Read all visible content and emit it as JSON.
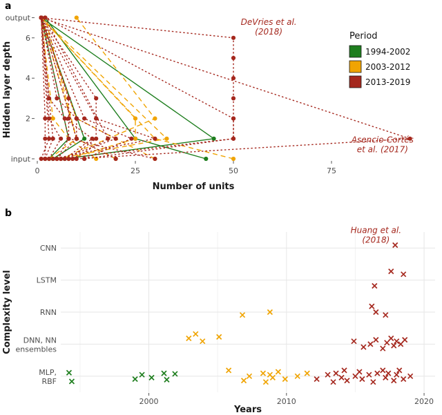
{
  "figure": {
    "panel_a_label": "a",
    "panel_b_label": "b"
  },
  "colors": {
    "1994-2002": "#1e7e1e",
    "2003-2012": "#f0a402",
    "2013-2019": "#a5281e",
    "annotation": "#a5281e",
    "tick_text": "#4d4d4d",
    "axis_title": "#1a1a1a",
    "grid_major": "#e6e6e6",
    "grid_minor": "#f2f2f2"
  },
  "legend": {
    "title": "Period",
    "entries": [
      {
        "label": "1994-2002",
        "period": "1994-2002"
      },
      {
        "label": "2003-2012",
        "period": "2003-2012"
      },
      {
        "label": "2013-2019",
        "period": "2013-2019"
      }
    ]
  },
  "line_styles": {
    "1994-2002": "solid",
    "2003-2012": "dashed",
    "2013-2019": "dotted"
  },
  "chart_data": [
    {
      "type": "line",
      "panel": "a",
      "title": "",
      "xlabel": "Number of units",
      "ylabel": "Hidden layer depth",
      "xlim": [
        0,
        97
      ],
      "xticks": [
        0,
        25,
        50,
        75
      ],
      "yticks": [
        {
          "value": 0,
          "label": "input"
        },
        {
          "value": 2,
          "label": "2"
        },
        {
          "value": 4,
          "label": "4"
        },
        {
          "value": 6,
          "label": "6"
        },
        {
          "value": 7,
          "label": "output"
        }
      ],
      "annotations": [
        {
          "x": 59,
          "y": 6.65,
          "lines": [
            "DeVries et al.",
            "(2018)"
          ]
        },
        {
          "x": 88,
          "y": 0.8,
          "lines": [
            "Asencio-Cortés",
            "et al. (2017)"
          ]
        }
      ],
      "networks": [
        {
          "period": "1994-2002",
          "layers": [
            [
              7,
              0
            ],
            [
              45,
              1
            ],
            [
              1,
              7
            ]
          ]
        },
        {
          "period": "1994-2002",
          "layers": [
            [
              4,
              0
            ],
            [
              12,
              1
            ],
            [
              1,
              7
            ]
          ]
        },
        {
          "period": "1994-2002",
          "layers": [
            [
              3,
              0
            ],
            [
              8,
              1
            ],
            [
              1,
              7
            ]
          ]
        },
        {
          "period": "1994-2002",
          "layers": [
            [
              43,
              0
            ],
            [
              25,
              1
            ],
            [
              2,
              7
            ]
          ]
        },
        {
          "period": "2003-2012",
          "layers": [
            [
              20,
              0
            ],
            [
              10,
              1
            ],
            [
              1,
              7
            ]
          ]
        },
        {
          "period": "2003-2012",
          "layers": [
            [
              30,
              0
            ],
            [
              20,
              1
            ],
            [
              10,
              2
            ],
            [
              1,
              7
            ]
          ]
        },
        {
          "period": "2003-2012",
          "layers": [
            [
              5,
              0
            ],
            [
              33,
              1
            ],
            [
              1,
              7
            ]
          ]
        },
        {
          "period": "2003-2012",
          "layers": [
            [
              8,
              0
            ],
            [
              25,
              1
            ],
            [
              25,
              2
            ],
            [
              1,
              7
            ]
          ]
        },
        {
          "period": "2003-2012",
          "layers": [
            [
              50,
              0
            ],
            [
              30,
              1
            ],
            [
              1,
              7
            ]
          ]
        },
        {
          "period": "2003-2012",
          "layers": [
            [
              6,
              0
            ],
            [
              18,
              1
            ],
            [
              30,
              2
            ],
            [
              10,
              7
            ]
          ]
        },
        {
          "period": "2003-2012",
          "layers": [
            [
              3,
              0
            ],
            [
              10,
              1
            ],
            [
              2,
              7
            ]
          ]
        },
        {
          "period": "2003-2012",
          "layers": [
            [
              15,
              0
            ],
            [
              8,
              1
            ],
            [
              4,
              2
            ],
            [
              1,
              7
            ]
          ]
        },
        {
          "period": "2013-2019",
          "layers": [
            [
              12,
              0
            ],
            [
              50,
              1
            ],
            [
              50,
              2
            ],
            [
              50,
              3
            ],
            [
              50,
              4
            ],
            [
              50,
              5
            ],
            [
              50,
              6
            ],
            [
              1,
              7
            ]
          ],
          "note": "DeVries et al. (2018)"
        },
        {
          "period": "2013-2019",
          "layers": [
            [
              10,
              0
            ],
            [
              95,
              1
            ],
            [
              1,
              7
            ]
          ],
          "note": "Asencio-Cortés et al. (2017)"
        },
        {
          "period": "2013-2019",
          "layers": [
            [
              2,
              0
            ],
            [
              4,
              1
            ],
            [
              1,
              7
            ]
          ]
        },
        {
          "period": "2013-2019",
          "layers": [
            [
              3,
              0
            ],
            [
              6,
              1
            ],
            [
              3,
              2
            ],
            [
              1,
              7
            ]
          ]
        },
        {
          "period": "2013-2019",
          "layers": [
            [
              5,
              0
            ],
            [
              10,
              1
            ],
            [
              10,
              2
            ],
            [
              1,
              7
            ]
          ]
        },
        {
          "period": "2013-2019",
          "layers": [
            [
              6,
              0
            ],
            [
              20,
              1
            ],
            [
              10,
              2
            ],
            [
              5,
              3
            ],
            [
              1,
              7
            ]
          ]
        },
        {
          "period": "2013-2019",
          "layers": [
            [
              4,
              0
            ],
            [
              30,
              1
            ],
            [
              15,
              2
            ],
            [
              1,
              7
            ]
          ]
        },
        {
          "period": "2013-2019",
          "layers": [
            [
              8,
              0
            ],
            [
              15,
              1
            ],
            [
              15,
              2
            ],
            [
              15,
              3
            ],
            [
              1,
              7
            ]
          ]
        },
        {
          "period": "2013-2019",
          "layers": [
            [
              2,
              0
            ],
            [
              2,
              1
            ],
            [
              2,
              2
            ],
            [
              1,
              7
            ]
          ]
        },
        {
          "period": "2013-2019",
          "layers": [
            [
              9,
              0
            ],
            [
              18,
              1
            ],
            [
              2,
              7
            ]
          ]
        },
        {
          "period": "2013-2019",
          "layers": [
            [
              6,
              0
            ],
            [
              50,
              1
            ],
            [
              50,
              2
            ],
            [
              2,
              7
            ]
          ]
        },
        {
          "period": "2013-2019",
          "layers": [
            [
              12,
              0
            ],
            [
              24,
              1
            ],
            [
              12,
              2
            ],
            [
              1,
              7
            ]
          ]
        },
        {
          "period": "2013-2019",
          "layers": [
            [
              5,
              0
            ],
            [
              8,
              1
            ],
            [
              8,
              2
            ],
            [
              8,
              3
            ],
            [
              1,
              7
            ]
          ]
        },
        {
          "period": "2013-2019",
          "layers": [
            [
              1,
              0
            ],
            [
              3,
              1
            ],
            [
              1,
              7
            ]
          ]
        },
        {
          "period": "2013-2019",
          "layers": [
            [
              20,
              0
            ],
            [
              10,
              1
            ],
            [
              1,
              7
            ]
          ]
        },
        {
          "period": "2013-2019",
          "layers": [
            [
              7,
              0
            ],
            [
              14,
              1
            ],
            [
              7,
              2
            ],
            [
              3,
              3
            ],
            [
              1,
              7
            ]
          ]
        },
        {
          "period": "2013-2019",
          "layers": [
            [
              30,
              0
            ],
            [
              8,
              1
            ],
            [
              1,
              7
            ]
          ]
        }
      ]
    },
    {
      "type": "scatter",
      "panel": "b",
      "title": "",
      "xlabel": "Years",
      "ylabel": "Complexity level",
      "xlim": [
        1993.6,
        2020.8
      ],
      "xticks": [
        2000,
        2010,
        2020
      ],
      "xticks_minor": [
        1995,
        2005,
        2015
      ],
      "categories": [
        "MLP,\nRBF",
        "DNN, NN\nensembles",
        "RNN",
        "LSTM",
        "CNN"
      ],
      "annotations": [
        {
          "x": 2016.5,
          "y": 4.55,
          "lines": [
            "Huang et al.",
            "(2018)"
          ]
        }
      ],
      "series": [
        {
          "period": "1994-2002",
          "points": [
            [
              1994.2,
              0,
              0.12
            ],
            [
              1994.4,
              0,
              -0.18
            ],
            [
              1999.0,
              0,
              -0.1
            ],
            [
              1999.5,
              0,
              0.05
            ],
            [
              2000.2,
              0,
              -0.05
            ],
            [
              2001.1,
              0,
              0.1
            ],
            [
              2001.3,
              0,
              -0.12
            ],
            [
              2001.9,
              0,
              0.08
            ]
          ]
        },
        {
          "period": "2003-2012",
          "points": [
            [
              2002.9,
              1,
              0.2
            ],
            [
              2003.4,
              1,
              0.35
            ],
            [
              2003.9,
              1,
              0.1
            ],
            [
              2005.1,
              1,
              0.25
            ],
            [
              2006.8,
              2,
              -0.1
            ],
            [
              2008.8,
              2,
              0.0
            ],
            [
              2005.8,
              0,
              0.2
            ],
            [
              2006.9,
              0,
              -0.15
            ],
            [
              2007.3,
              0,
              0.0
            ],
            [
              2008.3,
              0,
              0.1
            ],
            [
              2008.5,
              0,
              -0.2
            ],
            [
              2008.8,
              0,
              0.05
            ],
            [
              2009.0,
              0,
              -0.05
            ],
            [
              2009.4,
              0,
              0.15
            ],
            [
              2009.9,
              0,
              -0.1
            ],
            [
              2010.8,
              0,
              0.0
            ],
            [
              2011.5,
              0,
              0.1
            ]
          ]
        },
        {
          "period": "2013-2019",
          "points": [
            [
              2017.9,
              4,
              0.1
            ],
            [
              2016.4,
              3,
              -0.2
            ],
            [
              2017.6,
              3,
              0.3
            ],
            [
              2018.5,
              3,
              0.2
            ],
            [
              2016.2,
              2,
              0.2
            ],
            [
              2016.5,
              2,
              0.0
            ],
            [
              2017.2,
              2,
              -0.1
            ],
            [
              2014.9,
              1,
              0.1
            ],
            [
              2015.6,
              1,
              -0.1
            ],
            [
              2016.1,
              1,
              0.0
            ],
            [
              2016.5,
              1,
              0.15
            ],
            [
              2017.0,
              1,
              -0.15
            ],
            [
              2017.3,
              1,
              0.05
            ],
            [
              2017.6,
              1,
              0.2
            ],
            [
              2017.8,
              1,
              -0.05
            ],
            [
              2018.0,
              1,
              0.1
            ],
            [
              2018.3,
              1,
              0.0
            ],
            [
              2018.6,
              1,
              0.15
            ],
            [
              2012.2,
              0,
              -0.1
            ],
            [
              2013.0,
              0,
              0.05
            ],
            [
              2013.4,
              0,
              -0.2
            ],
            [
              2013.6,
              0,
              0.1
            ],
            [
              2014.0,
              0,
              -0.05
            ],
            [
              2014.2,
              0,
              0.2
            ],
            [
              2014.4,
              0,
              -0.15
            ],
            [
              2015.0,
              0,
              0.0
            ],
            [
              2015.3,
              0,
              0.15
            ],
            [
              2015.5,
              0,
              -0.1
            ],
            [
              2016.0,
              0,
              0.05
            ],
            [
              2016.3,
              0,
              -0.2
            ],
            [
              2016.6,
              0,
              0.1
            ],
            [
              2017.0,
              0,
              0.2
            ],
            [
              2017.2,
              0,
              -0.05
            ],
            [
              2017.4,
              0,
              0.1
            ],
            [
              2017.8,
              0,
              -0.15
            ],
            [
              2018.0,
              0,
              0.05
            ],
            [
              2018.2,
              0,
              0.2
            ],
            [
              2018.5,
              0,
              -0.1
            ],
            [
              2019.0,
              0,
              0.0
            ]
          ]
        }
      ]
    }
  ]
}
